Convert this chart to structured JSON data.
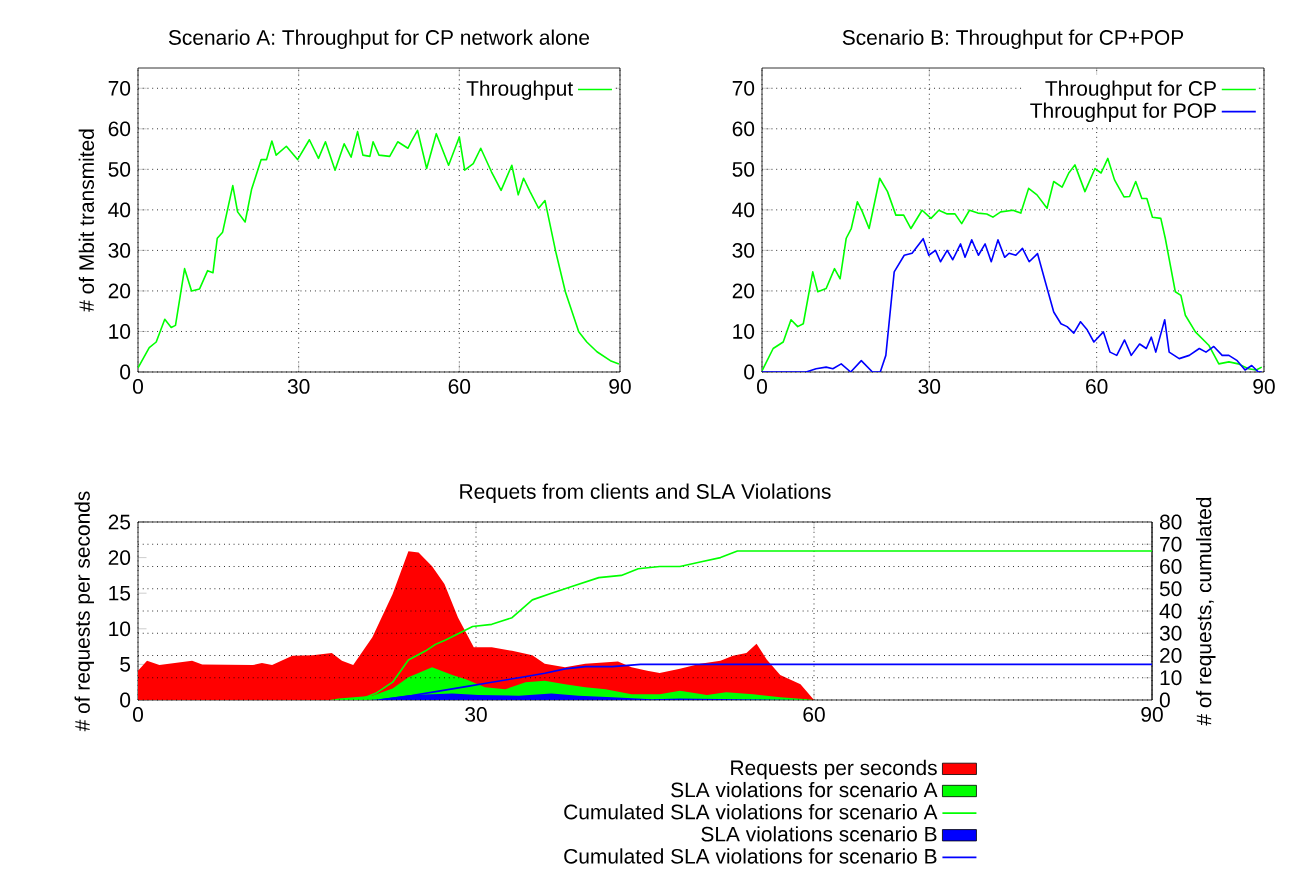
{
  "chart_data": [
    {
      "type": "line",
      "title": "Scenario A: Throughput for CP network alone",
      "ylabel": "# of Mbit transmited",
      "xlim": [
        0,
        90
      ],
      "xticks": [
        0,
        30,
        60,
        90
      ],
      "ylim": [
        0,
        75
      ],
      "yticks": [
        0,
        10,
        20,
        30,
        40,
        50,
        60,
        70
      ],
      "grid": true,
      "legend": "top right",
      "series": [
        {
          "name": "Throughput",
          "color": "#00ff00",
          "x": [
            0,
            2.1,
            3.4,
            5,
            6.2,
            7,
            8.7,
            10,
            11.5,
            13,
            14,
            14.8,
            15.8,
            17.7,
            18.6,
            20,
            21.2,
            23,
            24,
            25,
            25.8,
            27.7,
            29.8,
            32,
            33.7,
            35,
            36.8,
            38.5,
            39.8,
            41,
            42,
            43.3,
            43.9,
            45,
            47,
            48.5,
            50.4,
            51,
            52.2,
            53.9,
            55.7,
            58,
            60,
            61,
            62.6,
            64,
            66,
            67.8,
            69.8,
            71,
            72,
            73.2,
            74.8,
            76,
            78,
            79.8,
            82.3,
            83.8,
            85.7,
            88.2,
            89.8
          ],
          "values": [
            1,
            6,
            7.4,
            13,
            11,
            11.5,
            25.5,
            20,
            20.5,
            25,
            24.5,
            33,
            34.5,
            46,
            39.5,
            37,
            45,
            52.4,
            52.4,
            57,
            53.5,
            55.7,
            52.4,
            57.3,
            52.7,
            56.8,
            49.8,
            56.3,
            53,
            59.3,
            53.5,
            53.2,
            56.8,
            53.5,
            53.2,
            56.8,
            55.2,
            56.8,
            59.6,
            50.2,
            58.8,
            51,
            58,
            49.8,
            51.4,
            55.2,
            49.4,
            44.8,
            51,
            43.7,
            47.8,
            44.5,
            40.4,
            42.3,
            29.7,
            19.8,
            9.9,
            7.4,
            5,
            2.8,
            2
          ]
        }
      ]
    },
    {
      "type": "line",
      "title": "Scenario B: Throughput for CP+POP",
      "xlim": [
        0,
        90
      ],
      "xticks": [
        0,
        30,
        60,
        90
      ],
      "ylim": [
        0,
        75
      ],
      "yticks": [
        0,
        10,
        20,
        30,
        40,
        50,
        60,
        70
      ],
      "grid": true,
      "legend": "top right",
      "series": [
        {
          "name": "Throughput for CP",
          "color": "#00ff00",
          "x": [
            0,
            2,
            3.8,
            5.2,
            6.4,
            7.4,
            9.1,
            10,
            11.5,
            13,
            14,
            15.1,
            16,
            17.1,
            18,
            19.2,
            21.1,
            22.5,
            24,
            25.4,
            26.7,
            28.7,
            30.3,
            31.7,
            33.2,
            34.6,
            35.8,
            37.2,
            38.7,
            40.3,
            41.4,
            42.8,
            45,
            46.4,
            47.8,
            49.3,
            51.1,
            52.3,
            53.8,
            55,
            56.1,
            57.9,
            59.7,
            60.8,
            62,
            63.2,
            64.9,
            65.9,
            67,
            68.1,
            69,
            70,
            71.5,
            72.3,
            74.1,
            75.1,
            75.9,
            77.7,
            80.1,
            81.9,
            83.7,
            85.4,
            87.2,
            88.6,
            89.6
          ],
          "values": [
            0.3,
            5.8,
            7.4,
            12.9,
            11.2,
            11.9,
            24.7,
            19.8,
            20.6,
            25.5,
            23,
            33,
            35.4,
            42,
            39.5,
            35.4,
            47.8,
            44.5,
            38.7,
            38.7,
            35.4,
            39.9,
            37.9,
            39.9,
            39,
            39,
            36.6,
            39.9,
            39.2,
            39,
            38.2,
            39.5,
            39.9,
            39.2,
            45.3,
            43.7,
            40.4,
            47,
            45.6,
            49.1,
            51.1,
            44.5,
            50.2,
            49.1,
            52.7,
            47.4,
            43.2,
            43.3,
            47,
            42.8,
            42.8,
            38.2,
            37.9,
            33,
            19.8,
            18.9,
            14,
            9.9,
            6.6,
            2,
            2.5,
            2,
            0.8,
            0.5,
            1.2
          ]
        },
        {
          "name": "Throughput for POP",
          "color": "#0000ff",
          "x": [
            0,
            7.9,
            9.7,
            11.5,
            12.7,
            14.2,
            15.9,
            17.8,
            19.8,
            21.2,
            22.2,
            23.7,
            25.5,
            26.9,
            28.9,
            29.9,
            31.1,
            32,
            33.2,
            34.2,
            35.6,
            36.4,
            37.6,
            38.8,
            40,
            41.1,
            42.3,
            43.5,
            44.3,
            45.5,
            46.7,
            47.9,
            49.4,
            50.7,
            52.3,
            53.6,
            54.7,
            55.9,
            57.1,
            58.3,
            59.5,
            61.2,
            62.4,
            63.6,
            65,
            66.2,
            67.7,
            68.9,
            69.8,
            70.6,
            72.2,
            73,
            74.8,
            76.6,
            78.4,
            79.6,
            81,
            82.5,
            83.7,
            85.2,
            86.6,
            87.8,
            89,
            89.6
          ],
          "values": [
            0,
            0,
            0.8,
            1.2,
            0.8,
            2,
            0,
            2.8,
            0,
            0,
            4.1,
            24.7,
            28.8,
            29.3,
            32.9,
            28.8,
            30,
            27.2,
            30,
            27.7,
            31.6,
            28.3,
            32.6,
            28.8,
            31.6,
            27.2,
            32.6,
            28.3,
            29.3,
            28.8,
            30.5,
            27.2,
            29.2,
            22.7,
            14.8,
            11.9,
            11.2,
            9.6,
            12.4,
            10.4,
            7.4,
            9.9,
            4.9,
            4.1,
            7.9,
            4.1,
            6.9,
            5.8,
            8.6,
            4.9,
            12.9,
            4.9,
            3.3,
            4.1,
            5.8,
            4.9,
            6.3,
            4.1,
            4.1,
            2.8,
            0.5,
            1.6,
            0,
            0
          ]
        }
      ]
    },
    {
      "type": "area",
      "title": "Requets from clients and SLA Violations",
      "ylabel": "# of requests per seconds",
      "y2label": "# of requests, cumulated",
      "xlim": [
        0,
        90
      ],
      "xticks": [
        0,
        30,
        60,
        90
      ],
      "ylim": [
        0,
        25
      ],
      "yticks": [
        0,
        5,
        10,
        15,
        20,
        25
      ],
      "y2lim": [
        0,
        80
      ],
      "y2ticks": [
        0,
        10,
        20,
        30,
        40,
        50,
        60,
        70,
        80
      ],
      "grid": true,
      "legend": "bottom",
      "series": [
        {
          "name": "Requests per seconds",
          "color": "#ff0000",
          "x": [
            0,
            0.8,
            1.9,
            4.8,
            5.7,
            10.2,
            11,
            11.9,
            13.7,
            15.5,
            17.2,
            18.1,
            19.1,
            20.8,
            22.6,
            24,
            24.9,
            26.1,
            27.2,
            28.4,
            29.8,
            31.4,
            33.2,
            35,
            36.1,
            37.9,
            39.7,
            42.6,
            43.8,
            45.2,
            46.3,
            48.1,
            49.9,
            51.7,
            52.8,
            54,
            54.9,
            55.8,
            57,
            58.8,
            60
          ],
          "values": [
            4.1,
            5.5,
            4.9,
            5.5,
            5,
            4.9,
            5.2,
            4.9,
            6.2,
            6.3,
            6.6,
            5.5,
            4.9,
            8.8,
            14.9,
            20.9,
            20.7,
            18.8,
            16.3,
            11.6,
            7.4,
            7.4,
            6.9,
            6.3,
            5.1,
            4.6,
            5.1,
            5.4,
            4.6,
            4.1,
            3.8,
            4.4,
            5.1,
            5.5,
            6.2,
            6.6,
            7.9,
            5.7,
            3.5,
            2.2,
            0
          ]
        },
        {
          "name": "SLA violations for scenario A",
          "color": "#00ff00",
          "x": [
            17,
            17.8,
            20.8,
            22.6,
            24,
            26.1,
            27.9,
            29.1,
            30.8,
            32.6,
            34.4,
            36.1,
            37.9,
            39.7,
            41.5,
            43.8,
            46.3,
            48.1,
            50.5,
            52.2,
            54.6,
            57,
            59.4,
            60
          ],
          "values": [
            0,
            0.2,
            0.6,
            1.6,
            3.2,
            4.6,
            3.5,
            2.9,
            1.8,
            1.5,
            2.5,
            2.7,
            2.2,
            1.8,
            1.5,
            0.8,
            0.8,
            1.3,
            0.7,
            1.1,
            0.8,
            0.4,
            0.1,
            0
          ]
        },
        {
          "name": "Cumulated SLA violations for scenario A",
          "type": "line",
          "axis": "y2",
          "color": "#00ff00",
          "x": [
            19.6,
            21.1,
            22.6,
            24,
            25.5,
            26.4,
            27.3,
            28.5,
            29.7,
            31.4,
            33.2,
            35,
            36.7,
            38.5,
            40.9,
            42.9,
            44.4,
            46.3,
            48.1,
            49.9,
            51.7,
            53.2,
            90
          ],
          "values": [
            0,
            3,
            8,
            18,
            22,
            25,
            27,
            30,
            33,
            34,
            37,
            45,
            48,
            51,
            55,
            56,
            59,
            60,
            60,
            62,
            64,
            67,
            67
          ]
        },
        {
          "name": "SLA violations scenario B",
          "color": "#0000ff",
          "x": [
            20.5,
            21.4,
            24.3,
            27.9,
            30.2,
            33.8,
            36.7,
            39.1,
            42.1,
            45.6,
            48.1,
            53.4,
            59.4
          ],
          "values": [
            0,
            0.1,
            0.7,
            0.9,
            0.7,
            0.6,
            0.9,
            0.6,
            0.4,
            0.1,
            0.2,
            0.1,
            0
          ]
        },
        {
          "name": "Cumulated SLA violations for scenario B",
          "type": "line",
          "axis": "y2",
          "color": "#0000ff",
          "x": [
            21.4,
            24.3,
            26.7,
            29.1,
            31.4,
            33.8,
            36.1,
            37.9,
            39.7,
            42.1,
            44.6,
            48,
            90
          ],
          "values": [
            0,
            2,
            4,
            6,
            8,
            10,
            12,
            14,
            15,
            15,
            16,
            16,
            16
          ]
        }
      ]
    }
  ]
}
